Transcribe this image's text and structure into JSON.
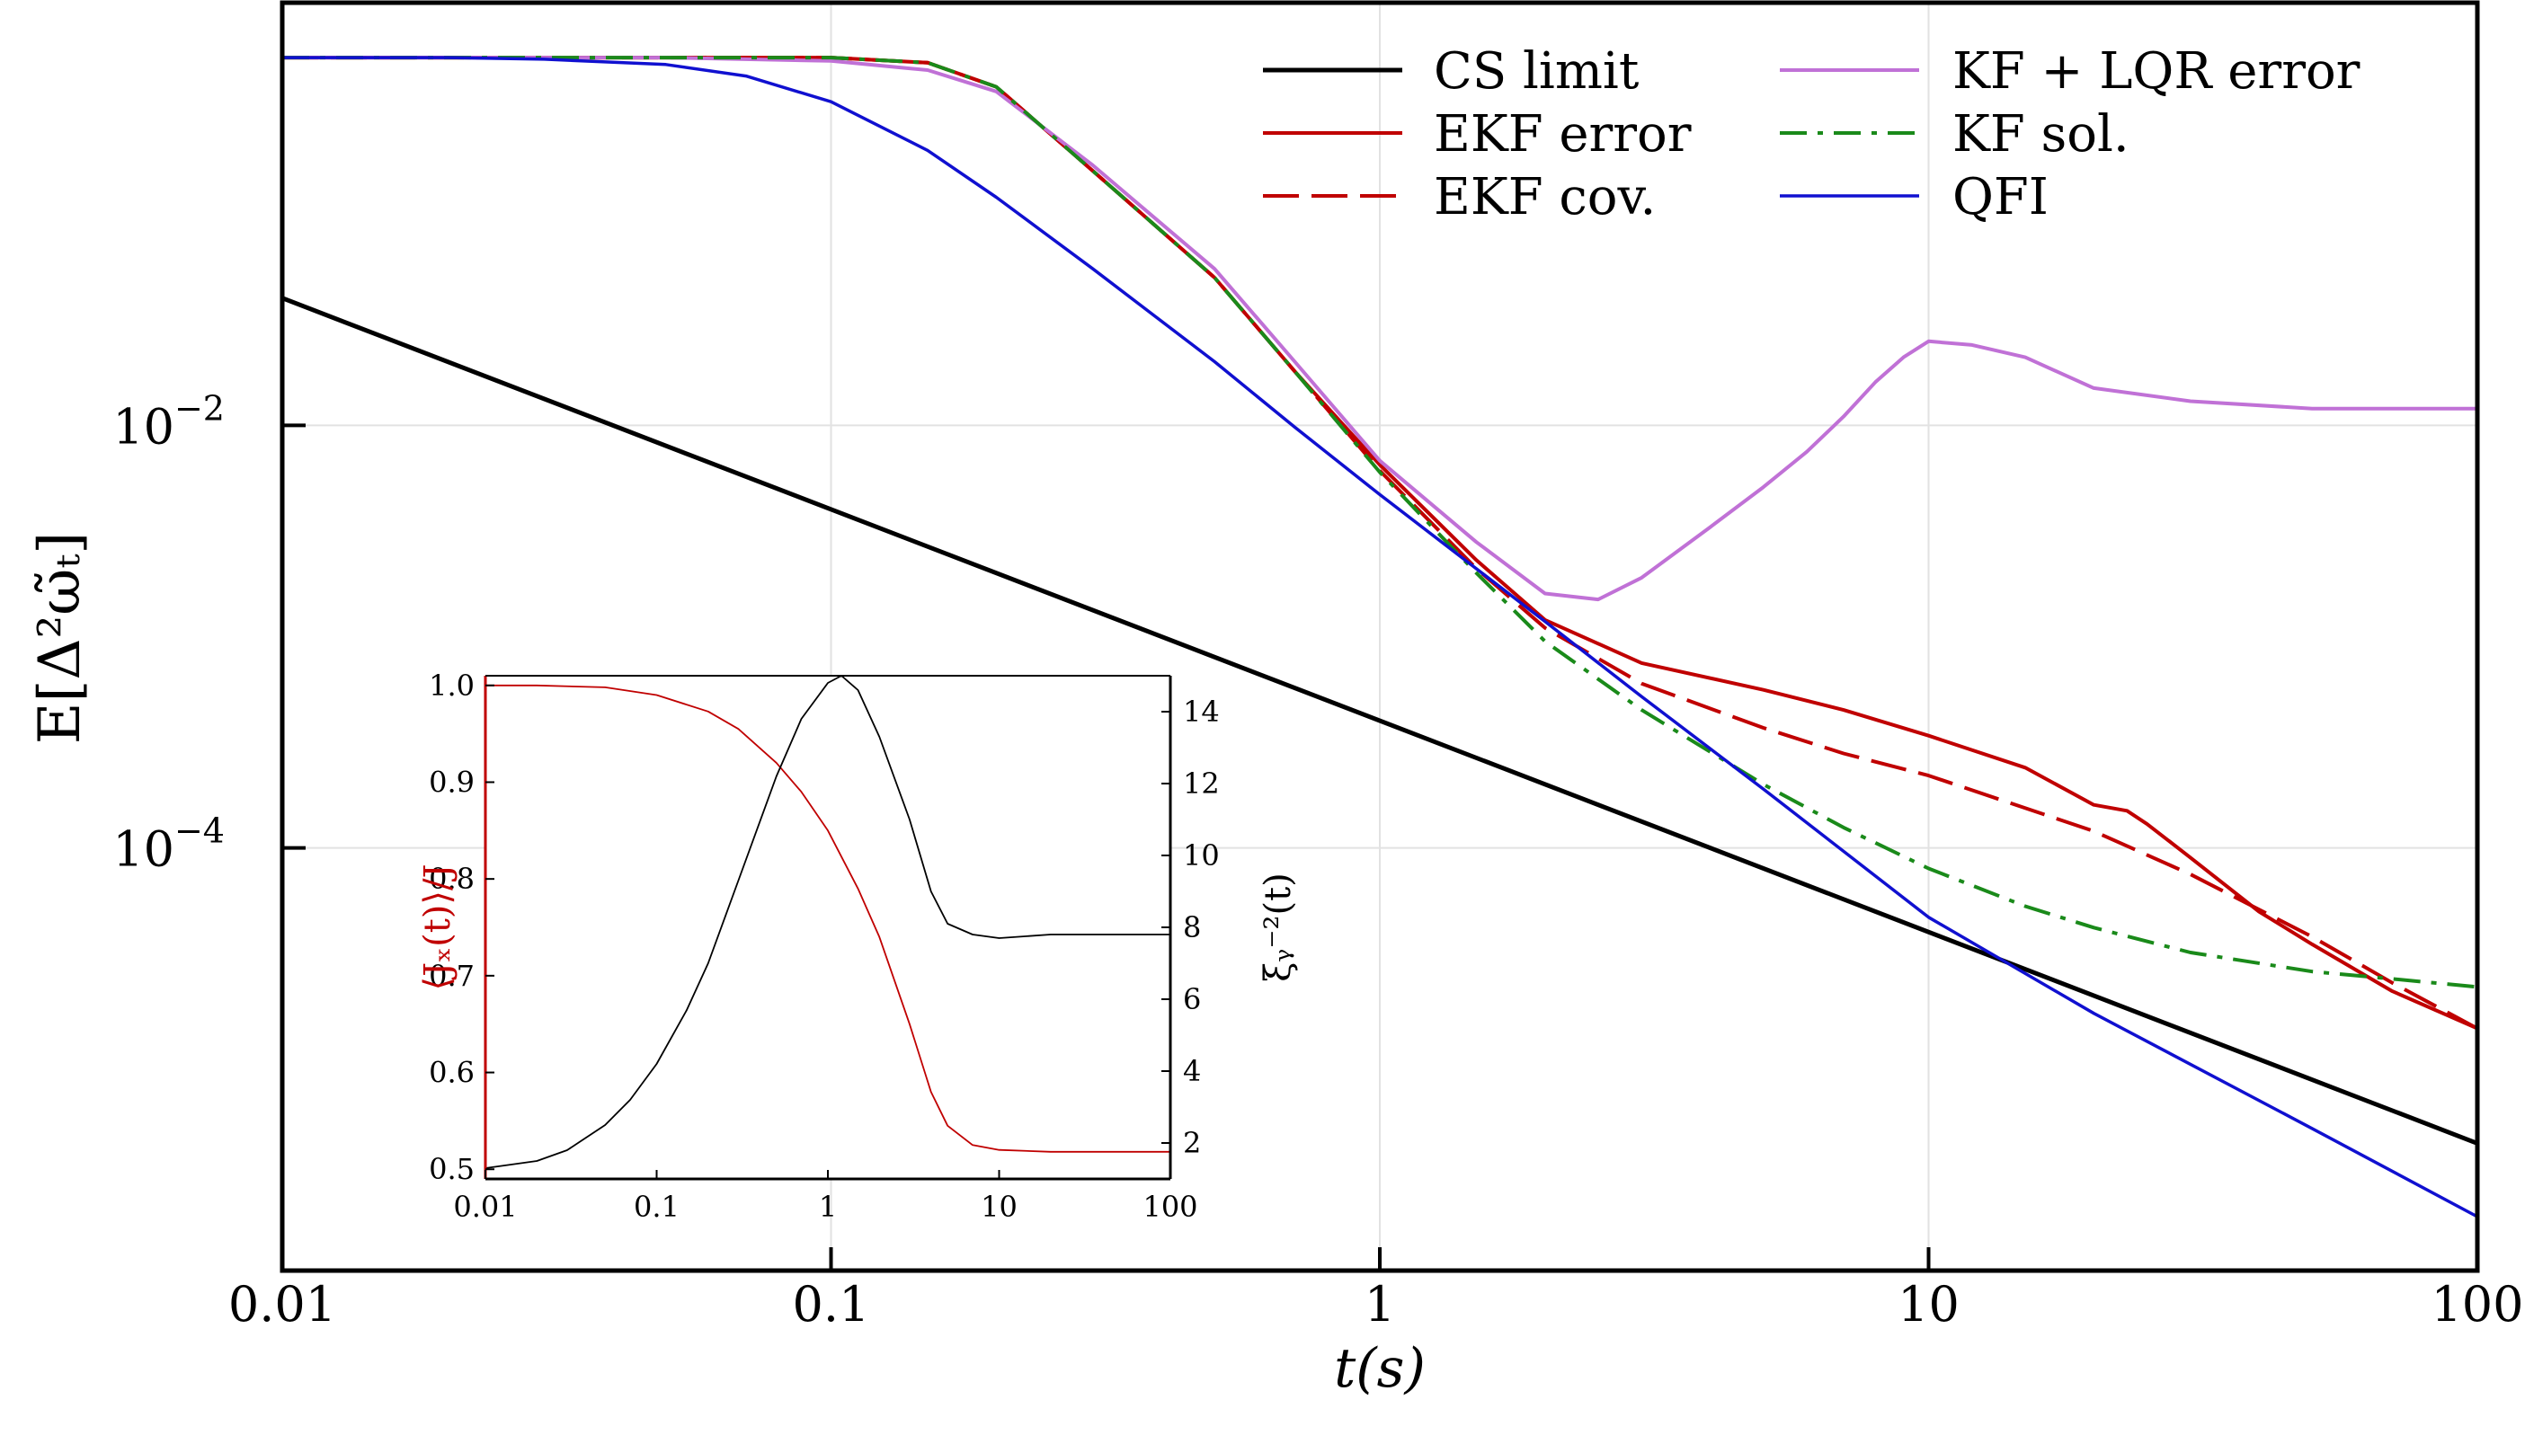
{
  "chart_data": [
    {
      "type": "line",
      "scale": "log-log",
      "title": "",
      "xlabel": "t(s)",
      "ylabel": "E[Δ²ω̃ₜ]",
      "xlim": [
        0.01,
        100
      ],
      "ylim": [
        1e-06,
        1
      ],
      "grid": true,
      "legend_position": "top-right",
      "x_ticks": [
        {
          "value": 0.01,
          "label": "0.01"
        },
        {
          "value": 0.1,
          "label": "0.1"
        },
        {
          "value": 1,
          "label": "1"
        },
        {
          "value": 10,
          "label": "10"
        },
        {
          "value": 100,
          "label": "100"
        }
      ],
      "y_ticks": [
        {
          "value": 0.01,
          "base": "10",
          "exp": "−2"
        },
        {
          "value": 0.0001,
          "base": "10",
          "exp": "−4"
        }
      ],
      "series": [
        {
          "name": "CS limit",
          "color": "#000000",
          "style": "solid",
          "width": 5,
          "x": [
            0.01,
            100
          ],
          "y": [
            0.04,
            4e-06
          ]
        },
        {
          "name": "EKF error",
          "color": "#c00000",
          "style": "solid",
          "width": 4,
          "x": [
            0.01,
            0.05,
            0.1,
            0.15,
            0.2,
            0.3,
            0.5,
            0.7,
            1,
            1.5,
            2,
            3,
            5,
            7,
            10,
            15,
            20,
            23,
            25,
            30,
            40,
            50,
            70,
            100
          ],
          "y": [
            0.55,
            0.55,
            0.55,
            0.52,
            0.4,
            0.16,
            0.05,
            0.018,
            0.0065,
            0.0023,
            0.0012,
            0.00075,
            0.00056,
            0.00045,
            0.00034,
            0.00024,
            0.00016,
            0.00015,
            0.00013,
            9e-05,
            5e-05,
            3.5e-05,
            2.1e-05,
            1.4e-05
          ]
        },
        {
          "name": "EKF cov.",
          "color": "#c00000",
          "style": "dashed",
          "width": 4,
          "x": [
            0.01,
            0.05,
            0.1,
            0.15,
            0.2,
            0.3,
            0.5,
            0.7,
            1,
            1.5,
            2,
            3,
            5,
            7,
            10,
            20,
            30,
            50,
            70,
            100
          ],
          "y": [
            0.55,
            0.55,
            0.55,
            0.52,
            0.4,
            0.16,
            0.05,
            0.018,
            0.0061,
            0.0021,
            0.0011,
            0.0006,
            0.00037,
            0.00028,
            0.00022,
            0.00012,
            7.5e-05,
            3.8e-05,
            2.3e-05,
            1.4e-05
          ]
        },
        {
          "name": "KF + LQR error",
          "color": "#c071d6",
          "style": "solid",
          "width": 4,
          "x": [
            0.01,
            0.05,
            0.1,
            0.15,
            0.2,
            0.3,
            0.5,
            0.7,
            1,
            1.5,
            2,
            2.5,
            3,
            4,
            5,
            6,
            7,
            8,
            9,
            10,
            12,
            15,
            20,
            30,
            50,
            100
          ],
          "y": [
            0.55,
            0.55,
            0.53,
            0.48,
            0.38,
            0.17,
            0.055,
            0.02,
            0.0068,
            0.0028,
            0.0016,
            0.0015,
            0.0019,
            0.0033,
            0.0051,
            0.0075,
            0.011,
            0.016,
            0.021,
            0.025,
            0.024,
            0.021,
            0.015,
            0.013,
            0.012,
            0.012
          ]
        },
        {
          "name": "KF sol.",
          "color": "#1a8a1a",
          "style": "dashdot",
          "width": 4,
          "x": [
            0.01,
            0.05,
            0.1,
            0.15,
            0.2,
            0.3,
            0.5,
            0.7,
            1,
            1.5,
            2,
            3,
            5,
            7,
            10,
            15,
            20,
            30,
            50,
            70,
            100
          ],
          "y": [
            0.55,
            0.55,
            0.55,
            0.52,
            0.4,
            0.16,
            0.05,
            0.018,
            0.006,
            0.002,
            0.00095,
            0.00045,
            0.0002,
            0.000125,
            8e-05,
            5.3e-05,
            4.2e-05,
            3.2e-05,
            2.6e-05,
            2.4e-05,
            2.2e-05
          ]
        },
        {
          "name": "QFI",
          "color": "#1010d0",
          "style": "solid",
          "width": 3.5,
          "x": [
            0.01,
            0.02,
            0.03,
            0.05,
            0.07,
            0.1,
            0.15,
            0.2,
            0.3,
            0.5,
            0.7,
            1,
            2,
            3,
            5,
            10,
            20,
            50,
            100
          ],
          "y": [
            0.55,
            0.55,
            0.54,
            0.51,
            0.45,
            0.34,
            0.2,
            0.12,
            0.055,
            0.02,
            0.0098,
            0.0047,
            0.00118,
            0.00052,
            0.00019,
            4.7e-05,
            1.65e-05,
            4.7e-06,
            1.8e-06
          ]
        }
      ]
    },
    {
      "type": "line",
      "scale": "semilog-x",
      "title": "",
      "xlabel": "",
      "ylabel_left": "⟨Jₓ(t)⟩/J",
      "ylabel_right": "ξᵧ⁻²(t)",
      "xlim": [
        0.01,
        100
      ],
      "ylim_left": [
        0.49,
        1.01
      ],
      "ylim_right": [
        1,
        15
      ],
      "x_ticks": [
        {
          "value": 0.01,
          "label": "0.01"
        },
        {
          "value": 0.1,
          "label": "0.1"
        },
        {
          "value": 1,
          "label": "1"
        },
        {
          "value": 10,
          "label": "10"
        },
        {
          "value": 100,
          "label": "100"
        }
      ],
      "y_ticks_left": [
        {
          "value": 0.5,
          "label": "0.5"
        },
        {
          "value": 0.6,
          "label": "0.6"
        },
        {
          "value": 0.7,
          "label": "0.7"
        },
        {
          "value": 0.8,
          "label": "0.8"
        },
        {
          "value": 0.9,
          "label": "0.9"
        },
        {
          "value": 1.0,
          "label": "1.0"
        }
      ],
      "y_ticks_right": [
        {
          "value": 2,
          "label": "2"
        },
        {
          "value": 4,
          "label": "4"
        },
        {
          "value": 6,
          "label": "6"
        },
        {
          "value": 8,
          "label": "8"
        },
        {
          "value": 10,
          "label": "10"
        },
        {
          "value": 12,
          "label": "12"
        },
        {
          "value": 14,
          "label": "14"
        }
      ],
      "series": [
        {
          "name": "⟨Jₓ(t)⟩/J",
          "axis": "left",
          "color": "#c00000",
          "width": 1.8,
          "x": [
            0.01,
            0.02,
            0.05,
            0.1,
            0.2,
            0.3,
            0.5,
            0.7,
            1,
            1.5,
            2,
            3,
            4,
            5,
            7,
            10,
            20,
            50,
            100
          ],
          "y": [
            1.0,
            1.0,
            0.998,
            0.99,
            0.973,
            0.955,
            0.92,
            0.89,
            0.85,
            0.79,
            0.74,
            0.65,
            0.58,
            0.545,
            0.525,
            0.52,
            0.518,
            0.518,
            0.518
          ]
        },
        {
          "name": "ξᵧ⁻²(t)",
          "axis": "right",
          "color": "#000000",
          "width": 1.8,
          "x": [
            0.01,
            0.02,
            0.03,
            0.05,
            0.07,
            0.1,
            0.15,
            0.2,
            0.3,
            0.5,
            0.7,
            1,
            1.2,
            1.5,
            2,
            3,
            4,
            5,
            7,
            10,
            20,
            50,
            100
          ],
          "y": [
            1.3,
            1.5,
            1.8,
            2.5,
            3.2,
            4.2,
            5.7,
            7.0,
            9.3,
            12.2,
            13.8,
            14.8,
            15.0,
            14.6,
            13.3,
            11.0,
            9.0,
            8.1,
            7.8,
            7.7,
            7.8,
            7.8,
            7.8
          ]
        }
      ]
    }
  ]
}
